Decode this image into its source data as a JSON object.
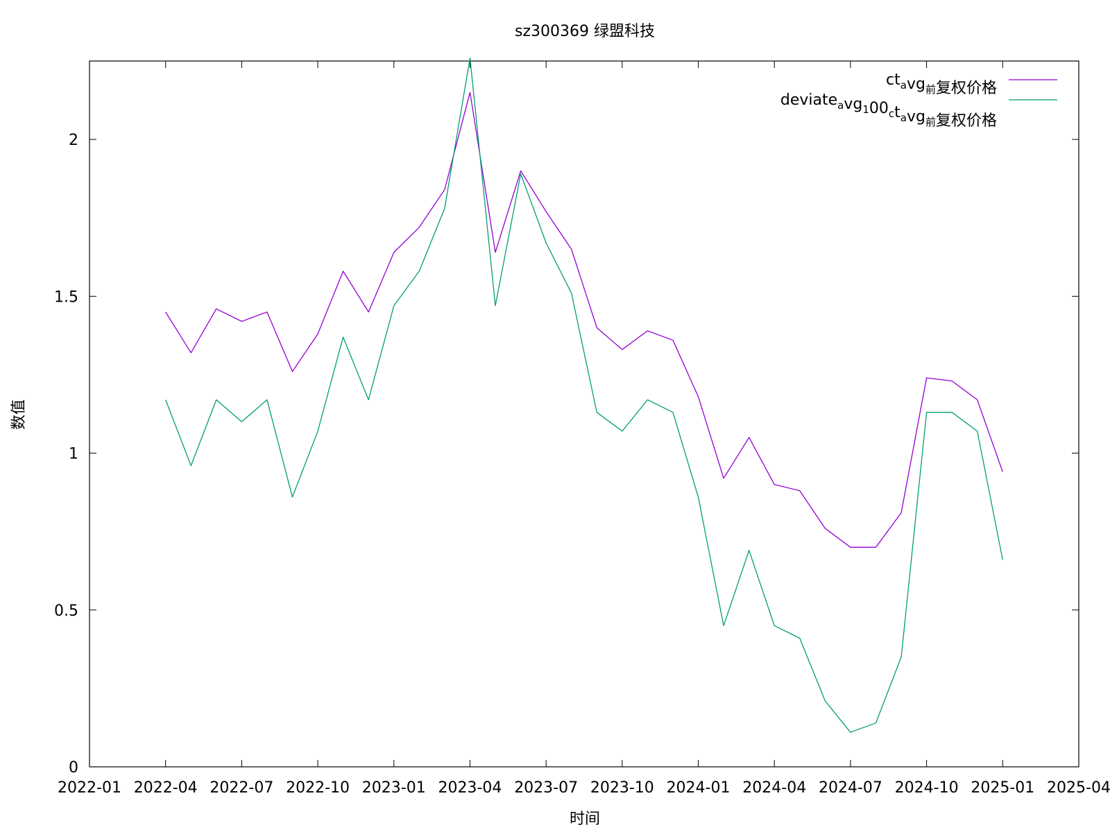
{
  "chart_data": {
    "type": "line",
    "title": "sz300369 绿盟科技",
    "xlabel": "时间",
    "ylabel": "数值",
    "xlim": [
      "2022-01",
      "2025-04"
    ],
    "ylim": [
      0,
      2.25
    ],
    "x_ticks": [
      "2022-01",
      "2022-04",
      "2022-07",
      "2022-10",
      "2023-01",
      "2023-04",
      "2023-07",
      "2023-10",
      "2024-01",
      "2024-04",
      "2024-07",
      "2024-10",
      "2025-01",
      "2025-04"
    ],
    "y_ticks": [
      "0",
      "0.5",
      "1",
      "1.5",
      "2"
    ],
    "grid": false,
    "legend_position": "top-right",
    "x": [
      "2022-04",
      "2022-05",
      "2022-06",
      "2022-07",
      "2022-08",
      "2022-09",
      "2022-10",
      "2022-11",
      "2022-12",
      "2023-01",
      "2023-02",
      "2023-03",
      "2023-04",
      "2023-05",
      "2023-06",
      "2023-07",
      "2023-08",
      "2023-09",
      "2023-10",
      "2023-11",
      "2023-12",
      "2024-01",
      "2024-02",
      "2024-03",
      "2024-04",
      "2024-05",
      "2024-06",
      "2024-07",
      "2024-08",
      "2024-09",
      "2024-10",
      "2024-11",
      "2024-12",
      "2025-01"
    ],
    "series": [
      {
        "legend_parts": [
          [
            "ct",
            ""
          ],
          [
            "a",
            "sub"
          ],
          [
            "vg",
            ""
          ],
          [
            "前",
            "sub"
          ],
          [
            "复权价格",
            ""
          ]
        ],
        "color": "#9400d3",
        "values": [
          1.45,
          1.32,
          1.46,
          1.42,
          1.45,
          1.26,
          1.38,
          1.58,
          1.45,
          1.64,
          1.72,
          1.84,
          2.15,
          1.64,
          1.9,
          1.77,
          1.65,
          1.4,
          1.33,
          1.39,
          1.36,
          1.18,
          0.92,
          1.05,
          0.9,
          0.88,
          0.76,
          0.7,
          0.7,
          0.81,
          1.24,
          1.23,
          1.17,
          0.94
        ]
      },
      {
        "legend_parts": [
          [
            "deviate",
            ""
          ],
          [
            "a",
            "sub"
          ],
          [
            "vg",
            ""
          ],
          [
            "1",
            "sub"
          ],
          [
            "00",
            ""
          ],
          [
            "c",
            "sub"
          ],
          [
            "t",
            ""
          ],
          [
            "a",
            "sub"
          ],
          [
            "vg",
            ""
          ],
          [
            "前",
            "sub"
          ],
          [
            "复权价格",
            ""
          ]
        ],
        "color": "#009e73",
        "values": [
          1.17,
          0.96,
          1.17,
          1.1,
          1.17,
          0.86,
          1.07,
          1.37,
          1.17,
          1.47,
          1.58,
          1.78,
          2.26,
          1.47,
          1.89,
          1.67,
          1.51,
          1.13,
          1.07,
          1.17,
          1.13,
          0.86,
          0.45,
          0.69,
          0.45,
          0.41,
          0.21,
          0.11,
          0.14,
          0.35,
          1.13,
          1.13,
          1.07,
          0.66
        ]
      }
    ]
  }
}
